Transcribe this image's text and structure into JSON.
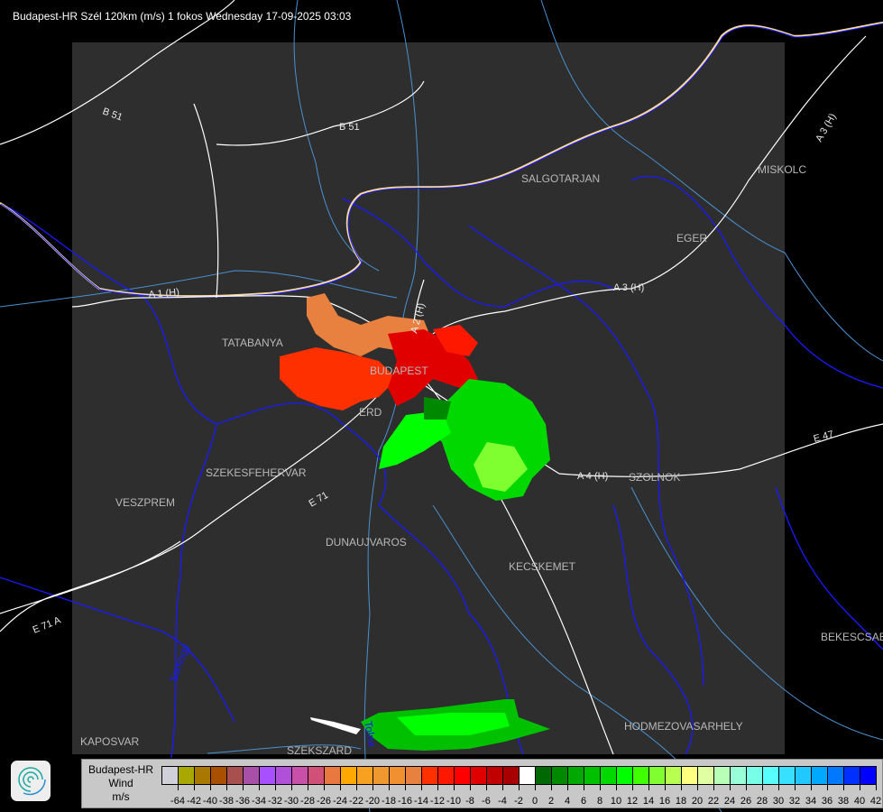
{
  "title": "Budapest-HR Szél 120km (m/s) 1 fokos Wednesday 17-09-2025 03:03",
  "map": {
    "cities": [
      "SALGOTARJAN",
      "MISKOLC",
      "EGER",
      "TATABANYA",
      "BUDAPEST",
      "ERD",
      "SZEKESFEHERVAR",
      "VESZPREM",
      "DUNAUJVAROS",
      "KECSKEMET",
      "SZOLNOK",
      "BEKESCSABA",
      "HODMEZOVASARHELY",
      "KAPOSVAR",
      "SZEKSZARD"
    ],
    "roads": [
      "B 51",
      "B 51",
      "A 3 (H)",
      "A 3 (H)",
      "A 1 (H)",
      "A 2 (H)",
      "A 4 (H)",
      "E 71",
      "E 71 A",
      "E 47"
    ],
    "counties": [
      "Somogy",
      "Tolna"
    ],
    "colors": {
      "background": "#000000",
      "radar_area": "#2e2e2e",
      "rivers": "#4a90d0",
      "borders": "#1a1aff",
      "roads": "#ffffff",
      "state_border": "#f5d9a0"
    }
  },
  "logo": {
    "icon": "swirl-logo-icon"
  },
  "legend": {
    "title": [
      "Budapest-HR",
      "Wind",
      "m/s"
    ],
    "labels": [
      "-64",
      "-42",
      "-40",
      "-38",
      "-36",
      "-34",
      "-32",
      "-30",
      "-28",
      "-26",
      "-24",
      "-22",
      "-20",
      "-18",
      "-16",
      "-14",
      "-12",
      "-10",
      "-8",
      "-6",
      "-4",
      "-2",
      "0",
      "2",
      "4",
      "6",
      "8",
      "10",
      "12",
      "14",
      "16",
      "18",
      "20",
      "22",
      "24",
      "26",
      "28",
      "30",
      "32",
      "34",
      "36",
      "38",
      "40",
      "42"
    ],
    "colors": [
      "#d0d0d8",
      "#a8a800",
      "#a87800",
      "#a85000",
      "#a85050",
      "#a850a8",
      "#a850ff",
      "#b050d8",
      "#c850a8",
      "#d05078",
      "#e87840",
      "#ffa800",
      "#f8a020",
      "#f09830",
      "#f09030",
      "#e88040",
      "#ff3000",
      "#ff1800",
      "#ff0000",
      "#e00000",
      "#c00000",
      "#a80000",
      "#ffffff",
      "#006800",
      "#008800",
      "#00a800",
      "#00c000",
      "#00d800",
      "#00ff00",
      "#40ff00",
      "#80ff30",
      "#b8ff50",
      "#ffff80",
      "#e0ffa0",
      "#b8ffb8",
      "#98ffd8",
      "#78ffe8",
      "#58ffff",
      "#38e0ff",
      "#20c8ff",
      "#00a8ff",
      "#0078ff",
      "#0030ff",
      "#0000ff"
    ]
  }
}
